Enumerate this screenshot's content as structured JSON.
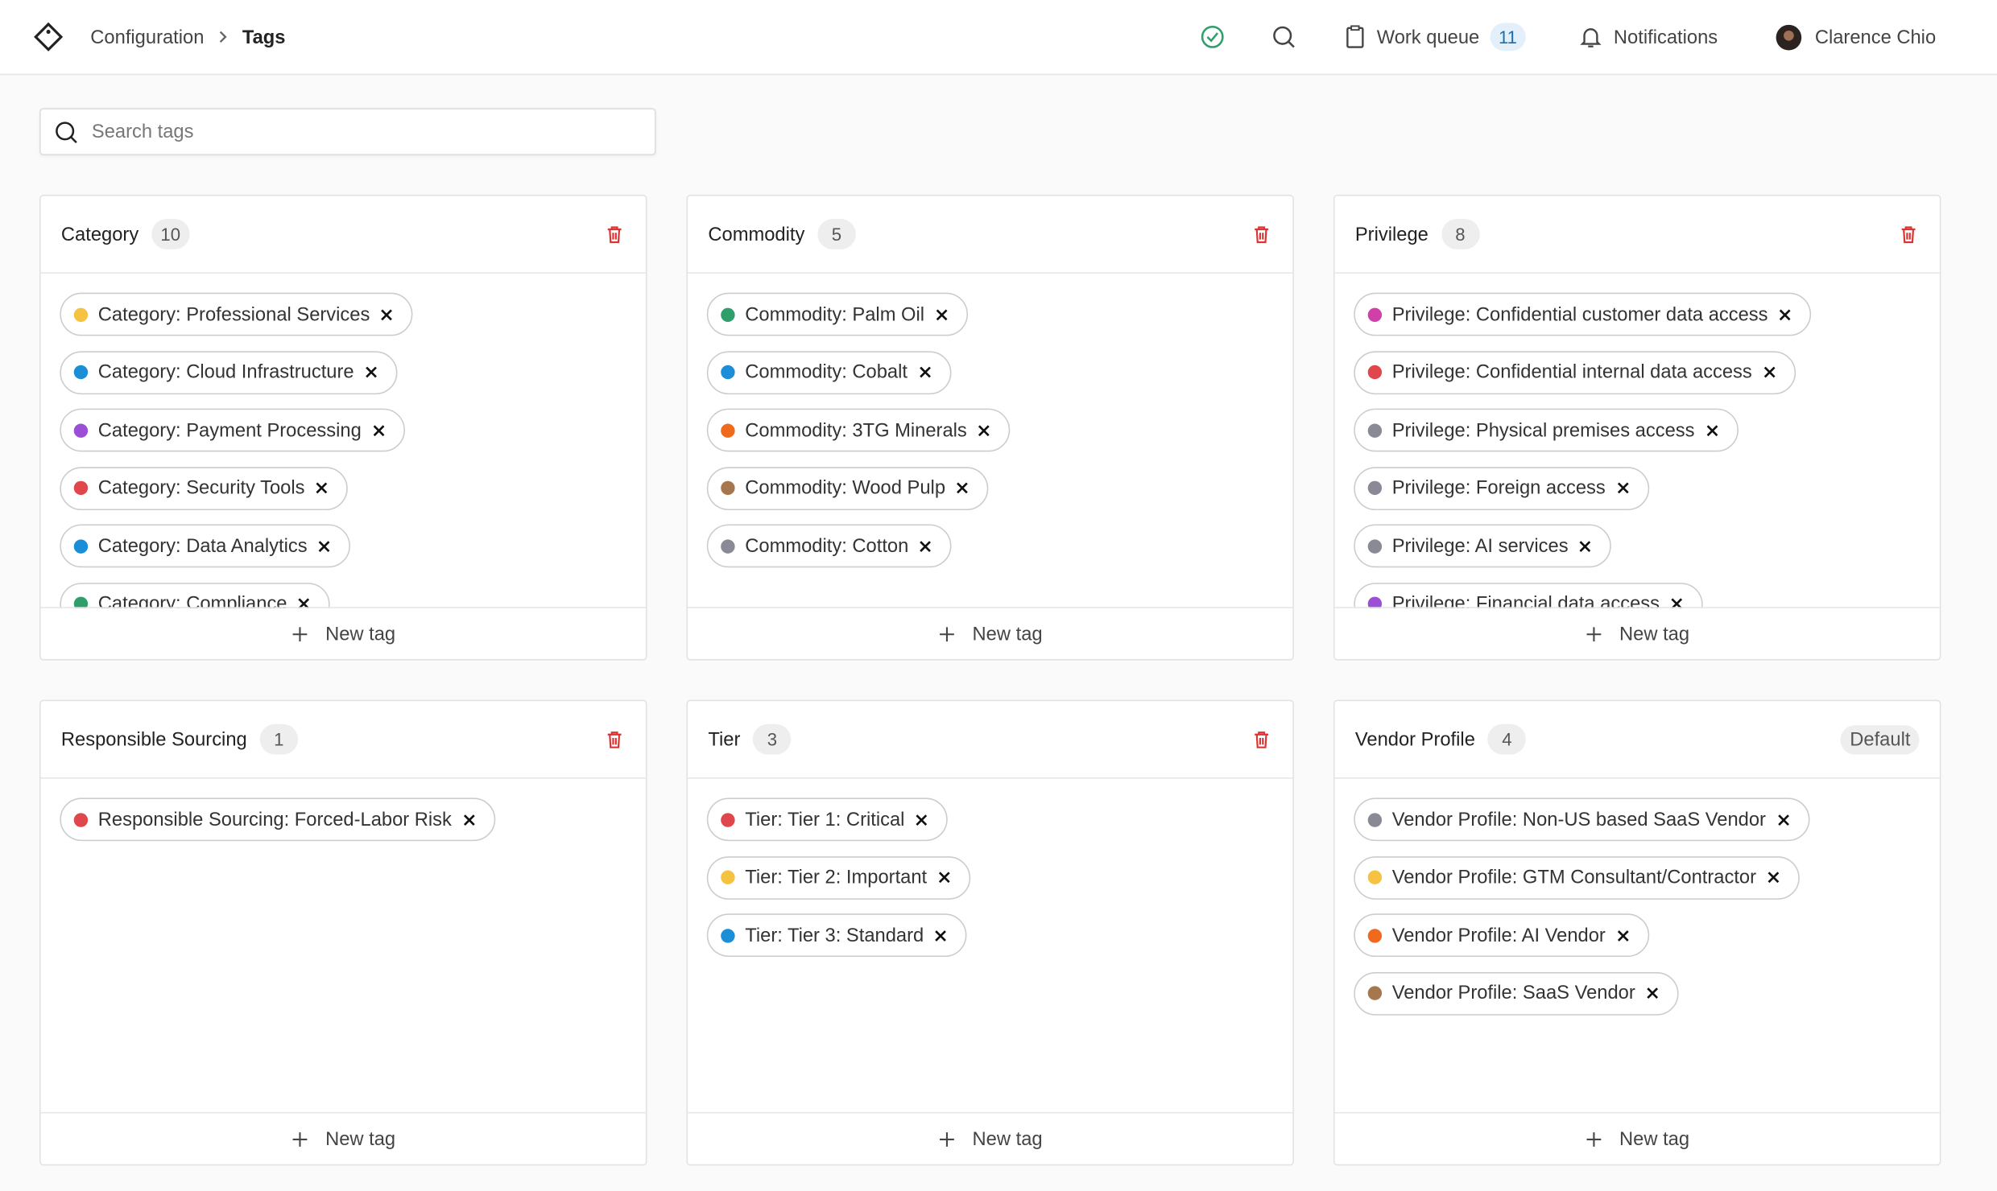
{
  "header": {
    "breadcrumb": [
      "Configuration",
      "Tags"
    ],
    "work_queue": {
      "label": "Work queue",
      "count": 11
    },
    "notifications": "Notifications",
    "user": "Clarence Chio"
  },
  "search_placeholder": "Search tags",
  "new_tag_label": "New tag",
  "groups": [
    {
      "name": "Category",
      "count": 10,
      "tags": [
        {
          "label": "Category: Professional Services",
          "color": "#f5c242"
        },
        {
          "label": "Category: Cloud Infrastructure",
          "color": "#1a8fd8"
        },
        {
          "label": "Category: Payment Processing",
          "color": "#9b4fd6"
        },
        {
          "label": "Category: Security Tools",
          "color": "#e0474c"
        },
        {
          "label": "Category: Data Analytics",
          "color": "#1a8fd8"
        },
        {
          "label": "Category: Compliance",
          "color": "#2f9e6a"
        }
      ]
    },
    {
      "name": "Commodity",
      "count": 5,
      "tags": [
        {
          "label": "Commodity: Palm Oil",
          "color": "#2f9e6a"
        },
        {
          "label": "Commodity: Cobalt",
          "color": "#1a8fd8"
        },
        {
          "label": "Commodity: 3TG Minerals",
          "color": "#f06a1d"
        },
        {
          "label": "Commodity: Wood Pulp",
          "color": "#a6774f"
        },
        {
          "label": "Commodity: Cotton",
          "color": "#8a8a96"
        }
      ]
    },
    {
      "name": "Privilege",
      "count": 8,
      "tags": [
        {
          "label": "Privilege: Confidential customer data access",
          "color": "#d13fa8"
        },
        {
          "label": "Privilege: Confidential internal data access",
          "color": "#e0474c"
        },
        {
          "label": "Privilege: Physical premises access",
          "color": "#8a8a96"
        },
        {
          "label": "Privilege: Foreign access",
          "color": "#8a8a96"
        },
        {
          "label": "Privilege: AI services",
          "color": "#8a8a96"
        },
        {
          "label": "Privilege: Financial data access",
          "color": "#9b4fd6"
        }
      ]
    },
    {
      "name": "Responsible Sourcing",
      "count": 1,
      "tags": [
        {
          "label": "Responsible Sourcing: Forced-Labor Risk",
          "color": "#e0474c"
        }
      ]
    },
    {
      "name": "Tier",
      "count": 3,
      "tags": [
        {
          "label": "Tier: Tier 1: Critical",
          "color": "#e0474c"
        },
        {
          "label": "Tier: Tier 2: Important",
          "color": "#f5c242"
        },
        {
          "label": "Tier: Tier 3: Standard",
          "color": "#1a8fd8"
        }
      ]
    },
    {
      "name": "Vendor Profile",
      "count": 4,
      "badge": "Default",
      "tags": [
        {
          "label": "Vendor Profile: Non-US based SaaS Vendor",
          "color": "#8a8a96"
        },
        {
          "label": "Vendor Profile: GTM Consultant/Contractor",
          "color": "#f5c242"
        },
        {
          "label": "Vendor Profile: AI Vendor",
          "color": "#f06a1d"
        },
        {
          "label": "Vendor Profile: SaaS Vendor",
          "color": "#a6774f"
        }
      ]
    }
  ]
}
